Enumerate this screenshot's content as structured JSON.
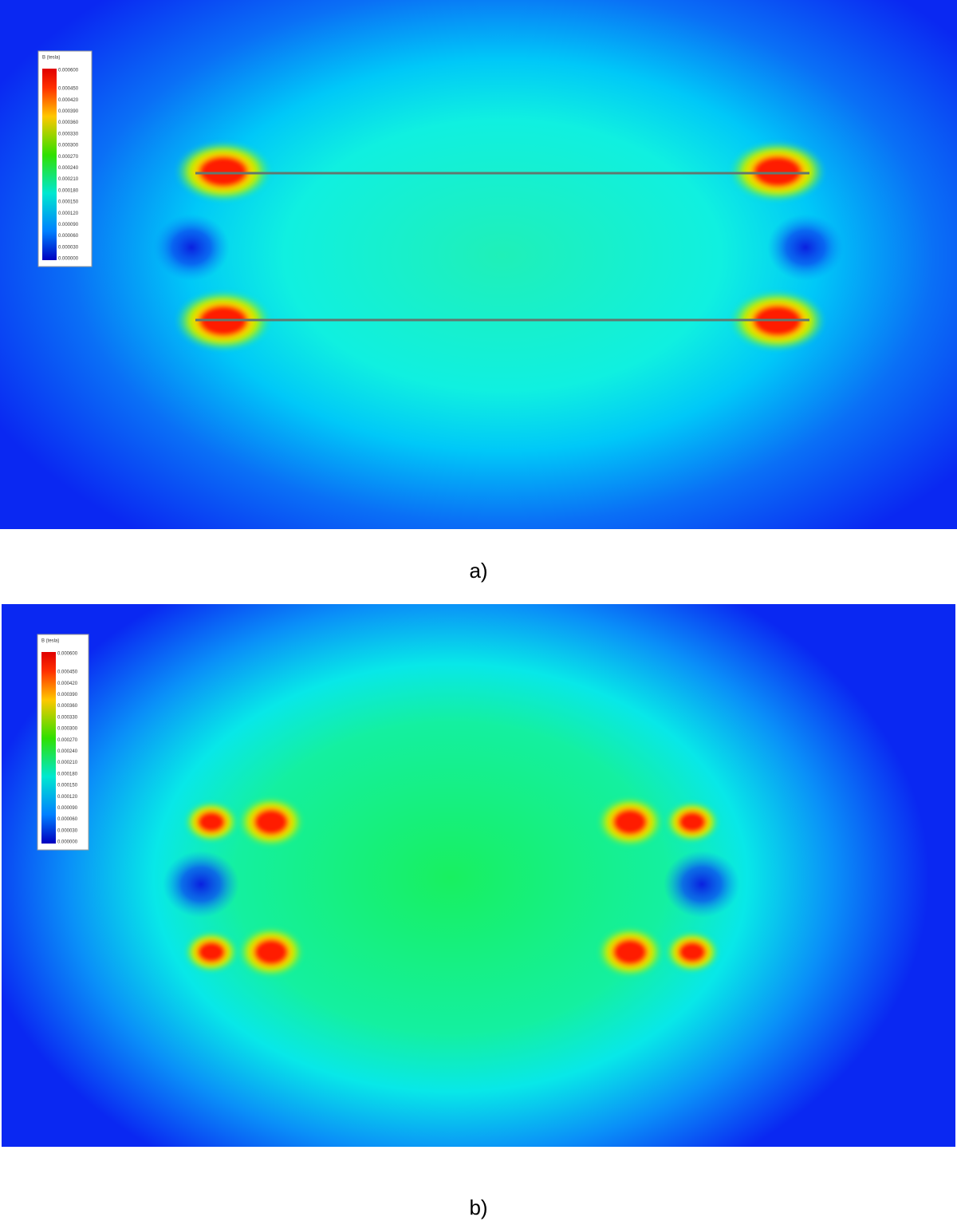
{
  "panels": [
    {
      "caption": "a)",
      "legend": {
        "title": "B (tesla)",
        "labels": [
          "0.000600",
          "0.000450",
          "0.000420",
          "0.000390",
          "0.000360",
          "0.000330",
          "0.000300",
          "0.000270",
          "0.000240",
          "0.000210",
          "0.000180",
          "0.000150",
          "0.000120",
          "0.000090",
          "0.000060",
          "0.000030",
          "0.000000"
        ]
      }
    },
    {
      "caption": "b)",
      "legend": {
        "title": "B (tesla)",
        "labels": [
          "0.000600",
          "0.000450",
          "0.000420",
          "0.000390",
          "0.000360",
          "0.000330",
          "0.000300",
          "0.000270",
          "0.000240",
          "0.000210",
          "0.000180",
          "0.000150",
          "0.000120",
          "0.000090",
          "0.000060",
          "0.000030",
          "0.000000"
        ]
      }
    }
  ]
}
